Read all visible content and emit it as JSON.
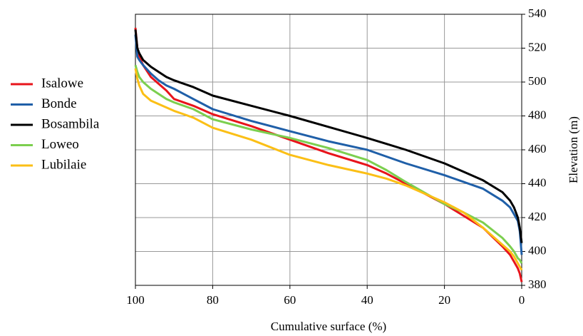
{
  "chart_data": {
    "type": "line",
    "x_label": "Cumulative surface (%)",
    "y_label": "Elevation (m)",
    "x": [
      100,
      99.5,
      99,
      98,
      96,
      94,
      92,
      90,
      85,
      80,
      70,
      60,
      50,
      40,
      35,
      30,
      20,
      15,
      10,
      5,
      3,
      2,
      1,
      0.5,
      0
    ],
    "series": [
      {
        "name": "Isalowe",
        "color": "#e8141b",
        "values": [
          532,
          520,
          515,
          510,
          503,
          499,
          495,
          490,
          486,
          481,
          474,
          466,
          458,
          451,
          446,
          440,
          428,
          421,
          414,
          403,
          398,
          394,
          390,
          387,
          382
        ]
      },
      {
        "name": "Bonde",
        "color": "#1f5fa8",
        "values": [
          528,
          515,
          513,
          510,
          505,
          501,
          498,
          496,
          490,
          484,
          477,
          471,
          465,
          460,
          456,
          452,
          445,
          441,
          437,
          430,
          426,
          422,
          418,
          412,
          398
        ]
      },
      {
        "name": "Bosambila",
        "color": "#000000",
        "values": [
          531,
          520,
          517,
          513,
          509,
          506,
          503,
          501,
          497,
          492,
          486,
          480,
          473.5,
          467,
          463.5,
          460,
          452,
          447,
          442,
          435,
          430,
          426,
          420,
          414,
          405
        ]
      },
      {
        "name": "Loweo",
        "color": "#7ccf4f",
        "values": [
          510,
          506,
          503,
          500,
          496,
          493,
          490,
          488,
          484,
          478,
          472,
          467,
          461,
          454,
          448,
          441,
          428,
          423,
          417,
          408,
          403,
          400,
          396,
          395,
          393
        ]
      },
      {
        "name": "Lubilaie",
        "color": "#fbbf16",
        "values": [
          508,
          502,
          498,
          493,
          489,
          487,
          485,
          483,
          479,
          473,
          466,
          457,
          451,
          446,
          443,
          439,
          429,
          423,
          414,
          404,
          400,
          397,
          393,
          391,
          389
        ]
      }
    ],
    "xlim": [
      100,
      0
    ],
    "xticks": [
      100,
      80,
      60,
      40,
      20,
      0
    ],
    "ylim": [
      380,
      540
    ],
    "yticks": [
      380,
      400,
      420,
      440,
      460,
      480,
      500,
      520,
      540
    ],
    "y_axis_side": "right",
    "grid": true,
    "legend": "left"
  }
}
